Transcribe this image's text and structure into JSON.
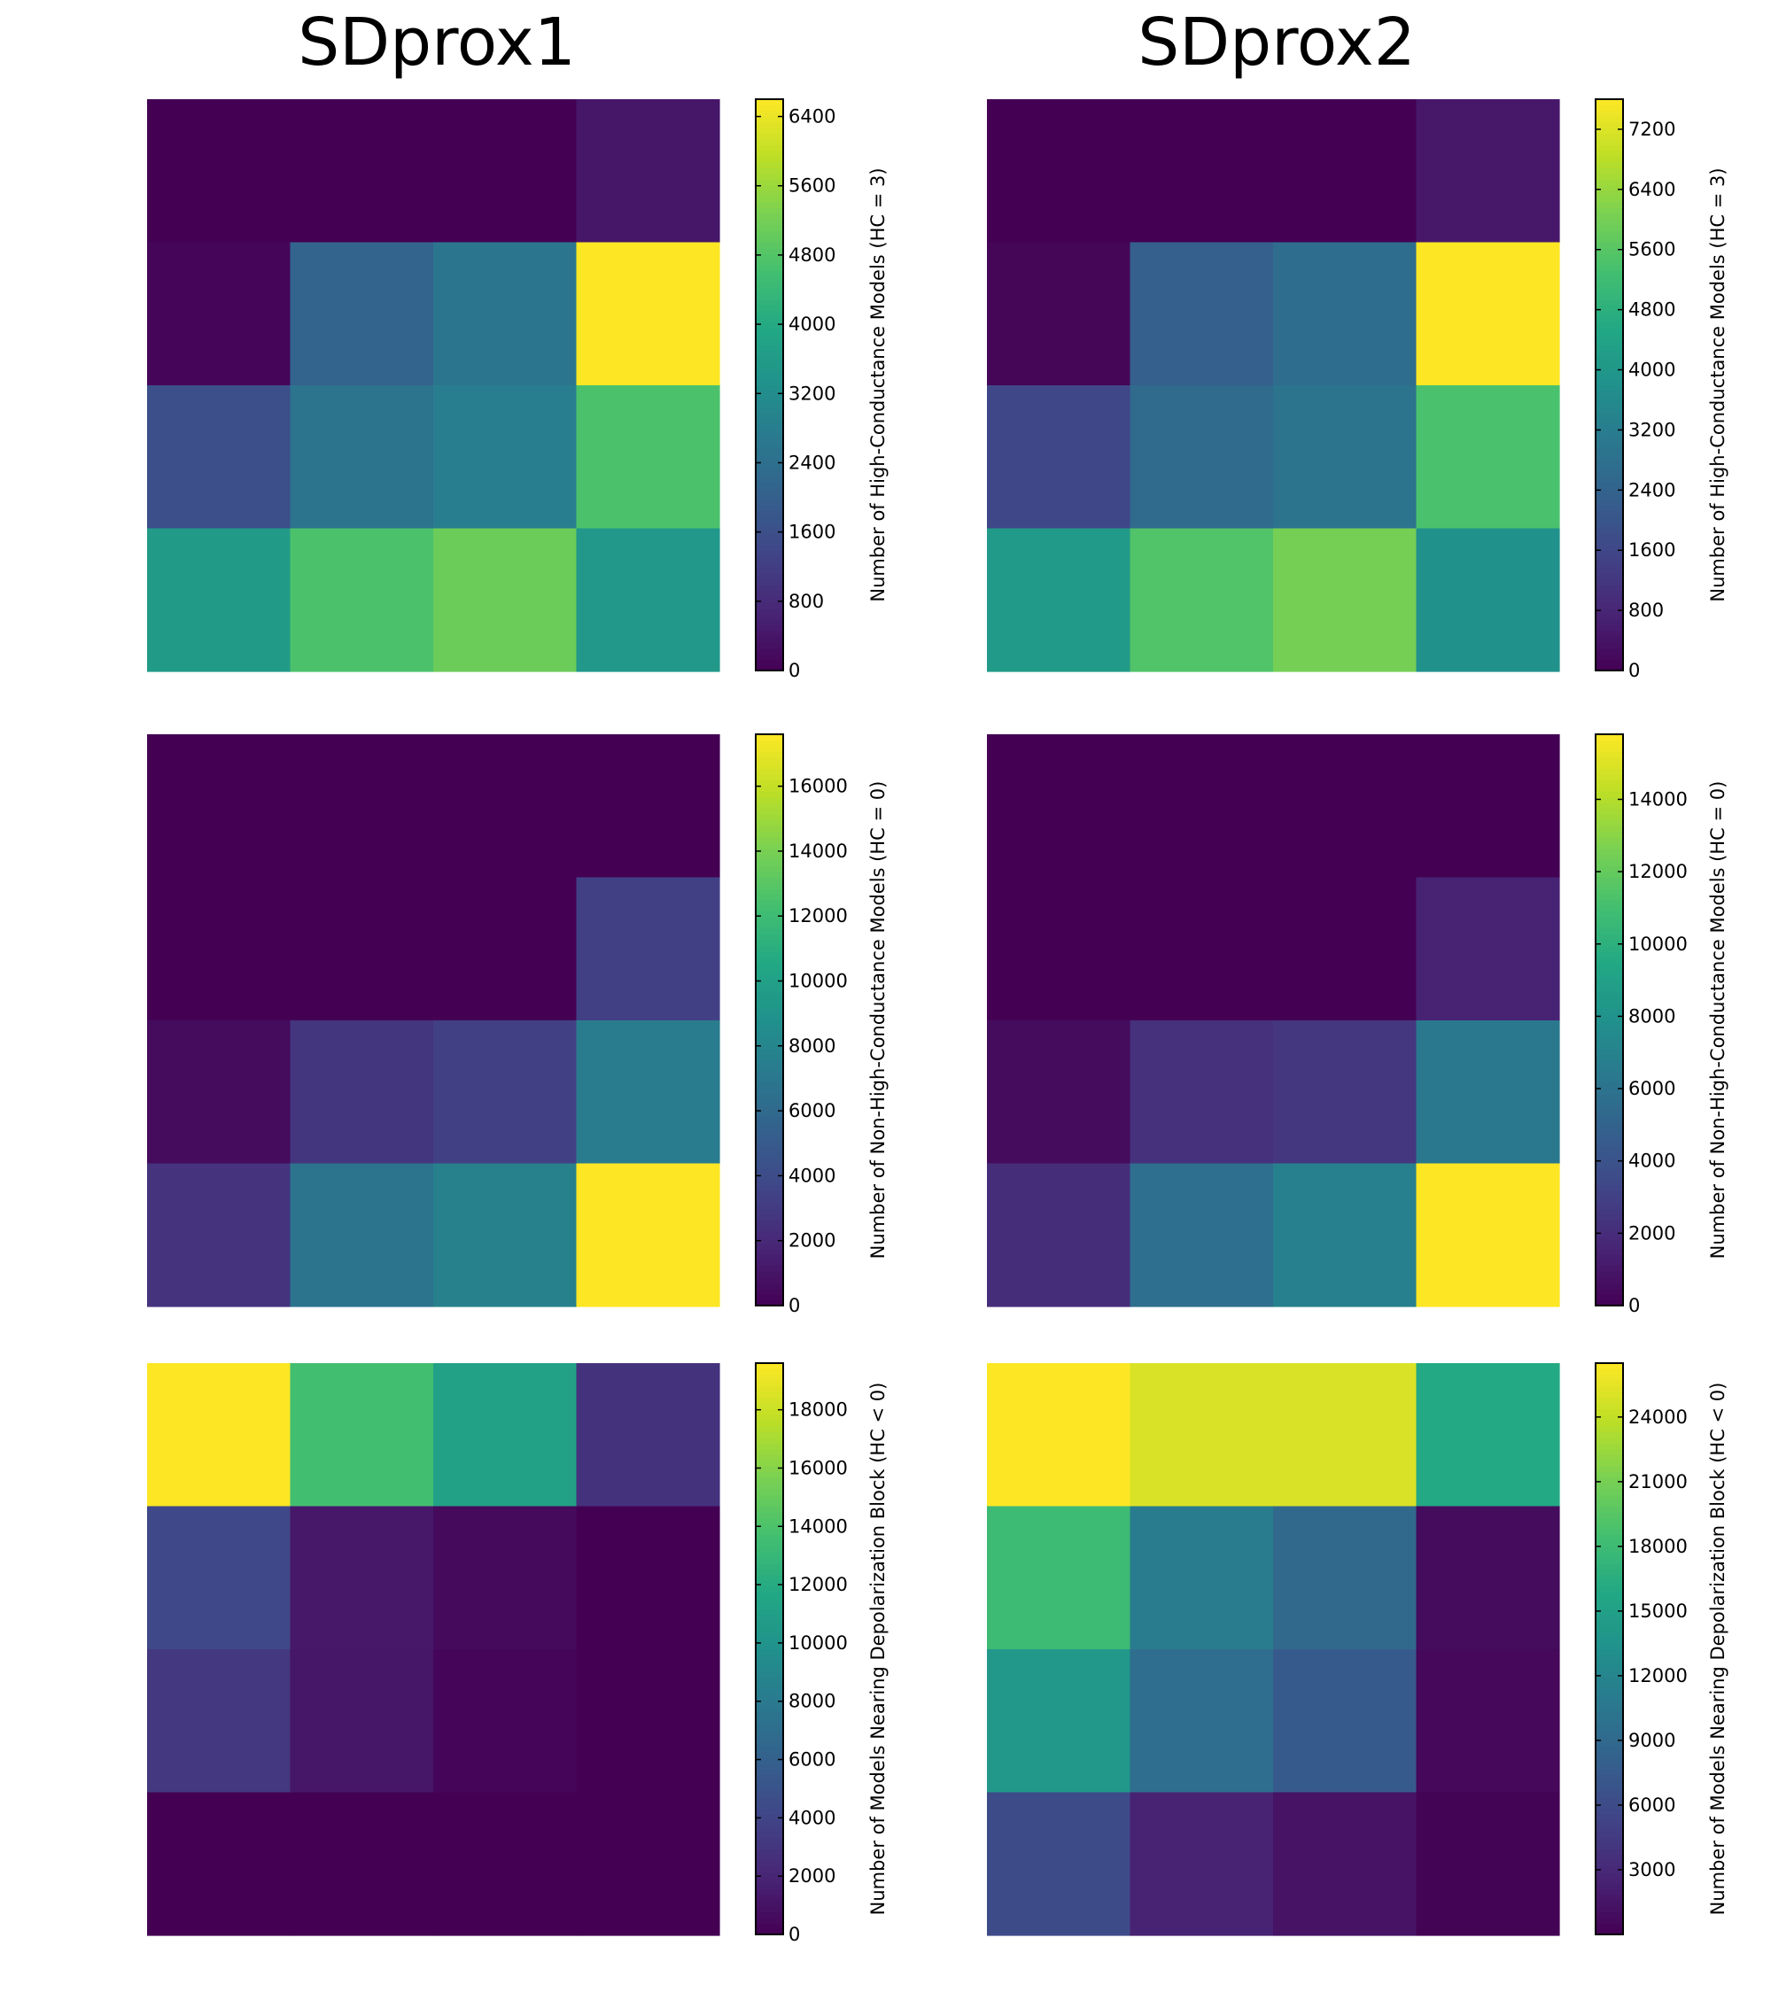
{
  "columns": [
    {
      "title": "SDprox1"
    },
    {
      "title": "SDprox2"
    }
  ],
  "colormap": "viridis",
  "chart_data": [
    {
      "type": "heatmap",
      "column_title": "SDprox1",
      "colorbar_label": "Number of High-Conductance Models (HC = 3)",
      "vmin": 0,
      "vmax": 6600,
      "ticks": [
        0,
        800,
        1600,
        2400,
        3200,
        4000,
        4800,
        5600,
        6400
      ],
      "values": [
        [
          0,
          0,
          0,
          400
        ],
        [
          100,
          2100,
          2600,
          6600
        ],
        [
          1600,
          2500,
          2800,
          4700
        ],
        [
          3600,
          4700,
          5100,
          3500
        ]
      ]
    },
    {
      "type": "heatmap",
      "column_title": "SDprox2",
      "colorbar_label": "Number of High-Conductance Models (HC = 3)",
      "vmin": 0,
      "vmax": 7600,
      "ticks": [
        0,
        800,
        1600,
        2400,
        3200,
        4000,
        4800,
        5600,
        6400,
        7200
      ],
      "values": [
        [
          0,
          0,
          0,
          500
        ],
        [
          100,
          2300,
          2700,
          7600
        ],
        [
          1600,
          2600,
          2900,
          5400
        ],
        [
          4100,
          5500,
          6000,
          3800
        ]
      ]
    },
    {
      "type": "heatmap",
      "column_title": "SDprox1",
      "colorbar_label": "Number of Non-High-Conductance Models (HC = 0)",
      "vmin": 0,
      "vmax": 17600,
      "ticks": [
        0,
        2000,
        4000,
        6000,
        8000,
        10000,
        12000,
        14000,
        16000
      ],
      "values": [
        [
          0,
          0,
          0,
          0
        ],
        [
          0,
          0,
          0,
          3300
        ],
        [
          500,
          2700,
          3300,
          7300
        ],
        [
          2600,
          6700,
          7700,
          17600
        ]
      ]
    },
    {
      "type": "heatmap",
      "column_title": "SDprox2",
      "colorbar_label": "Number of Non-High-Conductance Models (HC = 0)",
      "vmin": 0,
      "vmax": 15800,
      "ticks": [
        0,
        2000,
        4000,
        6000,
        8000,
        10000,
        12000,
        14000
      ],
      "values": [
        [
          0,
          0,
          0,
          0
        ],
        [
          0,
          0,
          0,
          1500
        ],
        [
          500,
          2200,
          2500,
          6300
        ],
        [
          2000,
          5700,
          6800,
          15800
        ]
      ]
    },
    {
      "type": "heatmap",
      "column_title": "SDprox1",
      "colorbar_label": "Number of Models Nearing Depolarization Block (HC < 0)",
      "vmin": 0,
      "vmax": 19600,
      "ticks": [
        0,
        2000,
        4000,
        6000,
        8000,
        10000,
        12000,
        14000,
        16000,
        18000
      ],
      "values": [
        [
          19600,
          13600,
          11200,
          2800
        ],
        [
          4200,
          1300,
          500,
          0
        ],
        [
          3200,
          1200,
          300,
          0
        ],
        [
          0,
          0,
          0,
          0
        ]
      ]
    },
    {
      "type": "heatmap",
      "column_title": "SDprox2",
      "colorbar_label": "Number of Models Nearing Depolarization Block (HC < 0)",
      "vmin": 0,
      "vmax": 26500,
      "ticks": [
        3000,
        6000,
        9000,
        12000,
        15000,
        18000,
        21000,
        24000
      ],
      "values": [
        [
          26500,
          25000,
          25000,
          16000
        ],
        [
          18000,
          11000,
          9000,
          800
        ],
        [
          14000,
          9500,
          7500,
          500
        ],
        [
          6000,
          2500,
          1400,
          200
        ]
      ]
    }
  ]
}
